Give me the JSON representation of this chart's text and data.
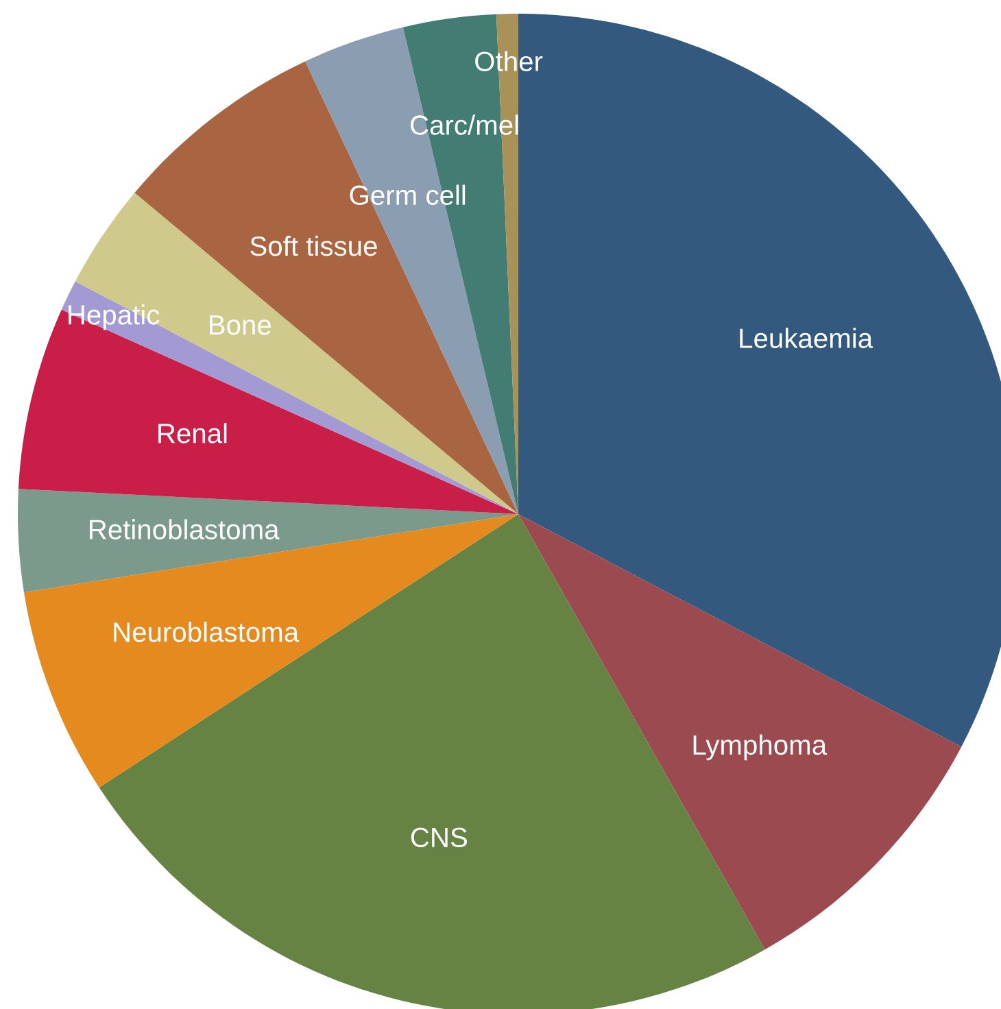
{
  "chart_data": {
    "type": "pie",
    "categories": [
      "Leukaemia",
      "Lymphoma",
      "CNS",
      "Neuroblastoma",
      "Retinoblastoma",
      "Renal",
      "Hepatic",
      "Bone",
      "Soft tissue",
      "Germ cell",
      "Carc/mel",
      "Other"
    ],
    "values": [
      32.7,
      9.1,
      24.0,
      6.7,
      3.3,
      5.9,
      1.0,
      3.4,
      6.9,
      3.3,
      3.0,
      0.7
    ],
    "colors": [
      "#335a7e",
      "#9b4a4f",
      "#668343",
      "#e58a1f",
      "#7c9a8c",
      "#c81e48",
      "#a39ad4",
      "#cfc98c",
      "#a96542",
      "#8a9db1",
      "#437c72",
      "#a99258"
    ]
  }
}
